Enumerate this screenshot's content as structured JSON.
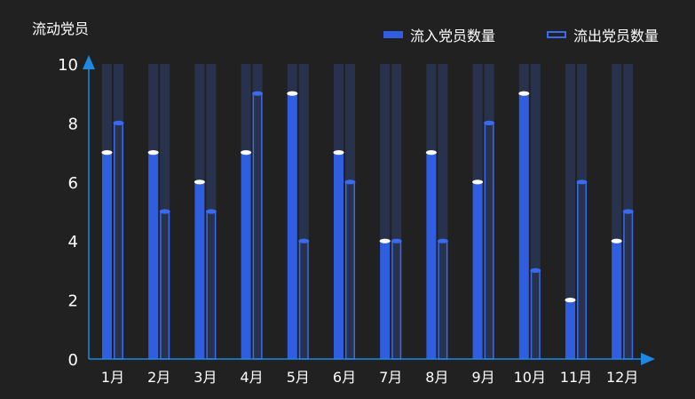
{
  "chart_data": {
    "type": "bar",
    "ylabel": "流动党员 ",
    "categories": [
      "1月",
      "2月",
      "3月",
      "4月",
      "5月",
      "6月",
      "7月",
      "8月",
      "9月",
      "10月",
      "11月",
      "12月"
    ],
    "series": [
      {
        "name": "流入党员数量",
        "values": [
          7,
          7,
          6,
          7,
          9,
          7,
          4,
          7,
          6,
          9,
          2,
          4
        ]
      },
      {
        "name": "流出党员数量",
        "values": [
          8,
          5,
          5,
          9,
          4,
          6,
          4,
          4,
          8,
          3,
          6,
          5
        ]
      }
    ],
    "ylim": [
      0,
      10
    ],
    "yticks": [
      "0",
      "2",
      "4",
      "6",
      "8",
      "10"
    ],
    "grid": false,
    "legend_position": "top-right",
    "colors": {
      "inflow": "#2f5ee0",
      "outflow_border": "#3a6af0",
      "background_track": "#28324c",
      "axis": "#1e88e5",
      "inflow_cap": "#ffffff",
      "outflow_cap": "#3a6af0"
    }
  }
}
